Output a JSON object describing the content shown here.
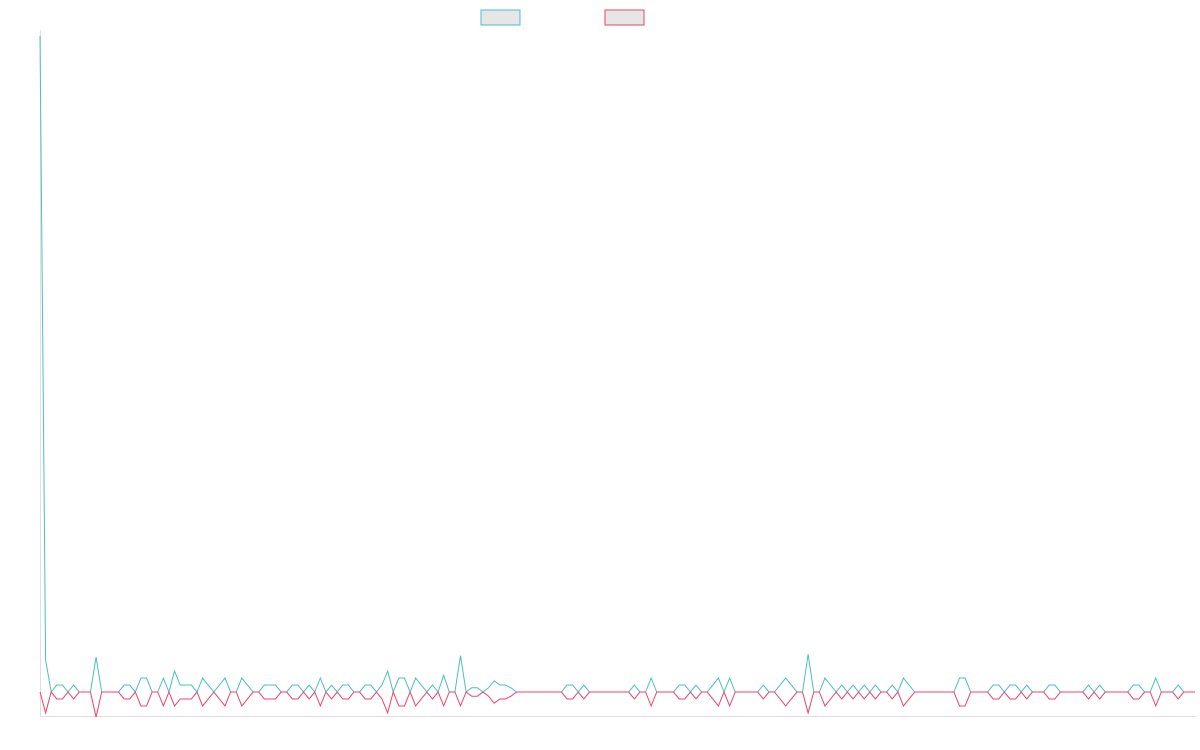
{
  "chart_data": {
    "type": "line",
    "title": "",
    "xlabel": "",
    "ylabel": "",
    "grid": false,
    "legend_position": "top",
    "x_count": 200,
    "ylim": [
      -1,
      47
    ],
    "series": [
      {
        "name": "",
        "color": "#4bc0c0",
        "values": [
          47,
          2.3,
          0,
          0.5,
          0.5,
          0,
          0.5,
          0,
          0,
          0,
          2.5,
          0,
          0,
          0,
          0,
          0.5,
          0.5,
          0,
          1,
          1,
          0,
          0,
          1,
          0,
          1.5,
          0.5,
          0.5,
          0.5,
          0,
          1,
          0.5,
          0,
          0.5,
          1,
          0,
          0,
          1,
          0.5,
          0,
          0,
          0.5,
          0.5,
          0.5,
          0,
          0,
          0.5,
          0.5,
          0,
          0.5,
          0,
          1,
          0,
          0.5,
          0,
          0.5,
          0.5,
          0,
          0,
          0.5,
          0.5,
          0,
          0.5,
          1.5,
          0,
          1,
          1,
          0,
          1,
          0.5,
          0,
          0.5,
          0,
          1.2,
          0,
          0,
          2.6,
          0,
          0.3,
          0.3,
          0,
          0.3,
          0.8,
          0.5,
          0.5,
          0.3,
          0,
          0,
          0,
          0,
          0,
          0,
          0,
          0,
          0,
          0.5,
          0.5,
          0,
          0.5,
          0,
          0,
          0,
          0,
          0,
          0,
          0,
          0,
          0.5,
          0,
          0,
          1,
          0,
          0,
          0,
          0,
          0.5,
          0.5,
          0,
          0.5,
          0,
          0,
          0.5,
          1,
          0,
          1,
          0,
          0,
          0,
          0,
          0,
          0.5,
          0,
          0,
          0.5,
          1,
          0.5,
          0,
          0,
          2.7,
          0,
          0,
          1,
          0.5,
          0,
          0.5,
          0,
          0.5,
          0,
          0.5,
          0,
          0.5,
          0,
          0,
          0.5,
          0,
          1,
          0.5,
          0,
          0,
          0,
          0,
          0,
          0,
          0,
          0,
          1,
          1,
          0,
          0,
          0,
          0,
          0.5,
          0.5,
          0,
          0.5,
          0.5,
          0,
          0.5,
          0,
          0,
          0,
          0.5,
          0.5,
          0,
          0,
          0,
          0,
          0,
          0.5,
          0,
          0.5,
          0,
          0,
          0,
          0,
          0,
          0.5,
          0.5,
          0,
          0,
          1,
          0,
          0,
          0,
          0.5,
          0,
          0,
          0
        ],
        "values_note": ""
      },
      {
        "name": "",
        "color": "#f0426c",
        "values": [
          0,
          -1.5,
          0,
          -0.5,
          -0.5,
          0,
          -0.5,
          0,
          0,
          0,
          -1.8,
          0,
          0,
          0,
          0,
          -0.5,
          -0.5,
          0,
          -1,
          -1,
          0,
          0,
          -1,
          0,
          -1,
          -0.5,
          -0.5,
          -0.5,
          0,
          -1,
          -0.5,
          0,
          -0.5,
          -1,
          0,
          0,
          -1,
          -0.5,
          0,
          0,
          -0.5,
          -0.5,
          -0.5,
          0,
          0,
          -0.5,
          -0.5,
          0,
          -0.5,
          0,
          -1,
          0,
          -0.5,
          0,
          -0.5,
          -0.5,
          0,
          0,
          -0.5,
          -0.5,
          0,
          -0.5,
          -1.5,
          0,
          -1,
          -1,
          0,
          -1,
          -0.5,
          0,
          -0.5,
          0,
          -1,
          0,
          0,
          -1,
          0,
          -0.3,
          -0.3,
          0,
          -0.3,
          -0.8,
          -0.5,
          -0.5,
          -0.3,
          0,
          0,
          0,
          0,
          0,
          0,
          0,
          0,
          0,
          -0.5,
          -0.5,
          0,
          -0.5,
          0,
          0,
          0,
          0,
          0,
          0,
          0,
          0,
          -0.5,
          0,
          0,
          -1,
          0,
          0,
          0,
          0,
          -0.5,
          -0.5,
          0,
          -0.5,
          0,
          0,
          -0.5,
          -1,
          0,
          -1,
          0,
          0,
          0,
          0,
          0,
          -0.5,
          0,
          0,
          -0.5,
          -1,
          -0.5,
          0,
          0,
          -1.5,
          0,
          0,
          -1,
          -0.5,
          0,
          -0.5,
          0,
          -0.5,
          0,
          -0.5,
          0,
          -0.5,
          0,
          0,
          -0.5,
          0,
          -1,
          -0.5,
          0,
          0,
          0,
          0,
          0,
          0,
          0,
          0,
          -1,
          -1,
          0,
          0,
          0,
          0,
          -0.5,
          -0.5,
          0,
          -0.5,
          -0.5,
          0,
          -0.5,
          0,
          0,
          0,
          -0.5,
          -0.5,
          0,
          0,
          0,
          0,
          0,
          -0.5,
          0,
          -0.5,
          0,
          0,
          0,
          0,
          0,
          -0.5,
          -0.5,
          0,
          0,
          -1,
          0,
          0,
          0,
          -0.5,
          0,
          0,
          0
        ]
      }
    ]
  }
}
